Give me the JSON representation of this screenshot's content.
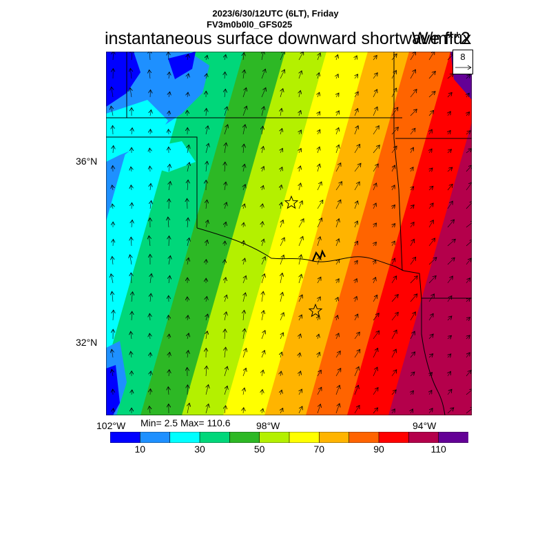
{
  "header": {
    "line1": "2023/6/30/12UTC (6LT), Friday",
    "line2": "FV3m0b0l0_GFS025",
    "title": "instantaneous surface downward shortwave flux",
    "units": "W/m**2"
  },
  "reference_vector": {
    "label": "8"
  },
  "axes": {
    "lat_labels": [
      "36°N",
      "32°N"
    ],
    "lon_labels": [
      "102°W",
      "98°W",
      "94°W"
    ]
  },
  "stats": {
    "text": "Min= 2.5 Max= 110.6"
  },
  "colorbar": {
    "colors": [
      "#0000ff",
      "#1e90ff",
      "#00ffff",
      "#00d77a",
      "#2db825",
      "#b4f000",
      "#ffff00",
      "#ffb400",
      "#ff6400",
      "#ff0000",
      "#b4004b",
      "#640096"
    ],
    "labels": [
      "10",
      "30",
      "50",
      "70",
      "90",
      "110"
    ]
  },
  "markers": {
    "stars": 2
  }
}
